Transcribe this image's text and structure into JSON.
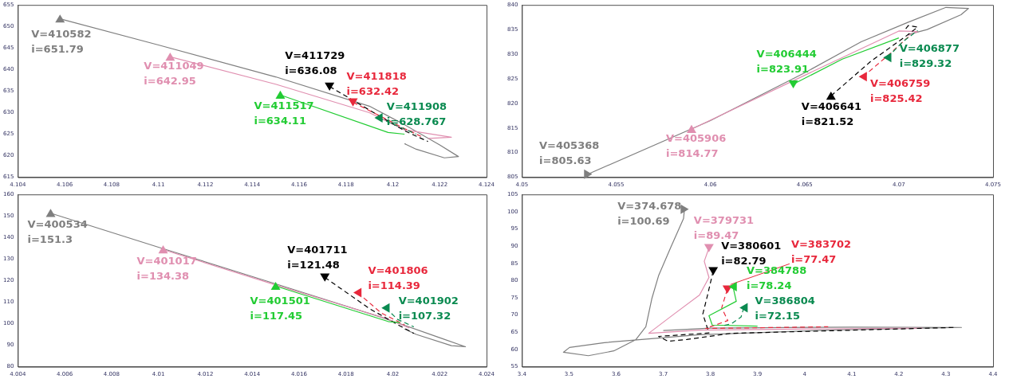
{
  "chart_data": [
    {
      "type": "line",
      "xlim": [
        4.104,
        4.124
      ],
      "xticks": [
        4.104,
        4.106,
        4.108,
        4.11,
        4.112,
        4.114,
        4.116,
        4.118,
        4.12,
        4.122,
        4.124
      ],
      "ylim": [
        615,
        655
      ],
      "yticks": [
        615,
        620,
        625,
        630,
        635,
        640,
        645,
        650,
        655
      ],
      "series": [
        {
          "color": "#7f7f7f",
          "line_style": "solid",
          "x": [
            4.1058,
            4.11,
            4.115,
            4.119,
            4.1205,
            4.122,
            4.1228,
            4.1222,
            4.121,
            4.1205
          ],
          "values": [
            651.79,
            645.7,
            638.3,
            631.5,
            627.2,
            622.5,
            619.8,
            619.5,
            621.5,
            622.8
          ]
        },
        {
          "color": "#e08fb0",
          "line_style": "solid",
          "x": [
            4.1105,
            4.115,
            4.119,
            4.1205,
            4.1225,
            4.1215
          ],
          "values": [
            642.95,
            636.6,
            630,
            626,
            624.3,
            624
          ]
        },
        {
          "color": "#000000",
          "line_style": "dashed",
          "x": [
            4.1173,
            4.119,
            4.1205,
            4.1215
          ],
          "values": [
            636.08,
            630.6,
            625.8,
            623.3
          ]
        },
        {
          "color": "#e8283c",
          "line_style": "dashed",
          "x": [
            4.1183,
            4.1205,
            4.1212
          ],
          "values": [
            632.42,
            626.3,
            624.5
          ]
        },
        {
          "color": "#22cc33",
          "line_style": "solid",
          "x": [
            4.1152,
            4.1198,
            4.1205
          ],
          "values": [
            634.11,
            625.4,
            625
          ]
        },
        {
          "color": "#0a8a50",
          "line_style": "dashed",
          "x": [
            4.1194,
            4.1205,
            4.121
          ],
          "values": [
            628.767,
            626.2,
            625
          ]
        }
      ],
      "annotations": [
        {
          "text": "V=410582\ni=651.79",
          "x": 4.1058,
          "y": 651.79
        },
        {
          "text": "V=411049\ni=642.95",
          "x": 4.1105,
          "y": 642.95
        },
        {
          "text": "V=411729\ni=636.08",
          "x": 4.1173,
          "y": 636.08
        },
        {
          "text": "V=411818\ni=632.42",
          "x": 4.1183,
          "y": 632.42
        },
        {
          "text": "V=411517\ni=634.11",
          "x": 4.1152,
          "y": 634.11
        },
        {
          "text": "V=411908\ni=628.767",
          "x": 4.1194,
          "y": 628.767
        }
      ]
    },
    {
      "type": "line",
      "xlim": [
        4.05,
        4.075
      ],
      "xticks": [
        4.05,
        4.055,
        4.06,
        4.065,
        4.07,
        4.075
      ],
      "ylim": [
        805,
        840
      ],
      "yticks": [
        805,
        810,
        815,
        820,
        825,
        830,
        835,
        840
      ],
      "series": [
        {
          "color": "#7f7f7f",
          "line_style": "solid",
          "x": [
            4.0535,
            4.06,
            4.065,
            4.068,
            4.0705,
            4.0725,
            4.0737,
            4.0733,
            4.0715,
            4.0705
          ],
          "values": [
            805.63,
            816.5,
            826.2,
            832.5,
            836.5,
            839.5,
            839.3,
            838,
            835,
            834
          ]
        },
        {
          "color": "#e08fb0",
          "line_style": "solid",
          "x": [
            4.059,
            4.065,
            4.07,
            4.071,
            4.0705
          ],
          "values": [
            814.77,
            825.7,
            834.7,
            834.6,
            833.8
          ]
        },
        {
          "color": "#000000",
          "line_style": "dashed",
          "x": [
            4.0664,
            4.0685,
            4.0705,
            4.071,
            4.0705,
            4.0703
          ],
          "values": [
            821.52,
            828.5,
            834,
            835.5,
            835.8,
            834.8
          ]
        },
        {
          "color": "#e8283c",
          "line_style": "dashed",
          "x": [
            4.0681,
            4.0695,
            4.0705
          ],
          "values": [
            825.42,
            830,
            833.5
          ]
        },
        {
          "color": "#22cc33",
          "line_style": "solid",
          "x": [
            4.0644,
            4.067,
            4.07
          ],
          "values": [
            823.91,
            829,
            833.3
          ]
        },
        {
          "color": "#0a8a50",
          "line_style": "dashed",
          "x": [
            4.0694,
            4.0702,
            4.071
          ],
          "values": [
            829.32,
            832.5,
            834.8
          ]
        }
      ],
      "annotations": [
        {
          "text": "V=405368\ni=805.63",
          "x": 4.0535,
          "y": 805.63
        },
        {
          "text": "V=405906\ni=814.77",
          "x": 4.059,
          "y": 814.77
        },
        {
          "text": "V=406641\ni=821.52",
          "x": 4.0664,
          "y": 821.52
        },
        {
          "text": "V=406759\ni=825.42",
          "x": 4.0681,
          "y": 825.42
        },
        {
          "text": "V=406444\ni=823.91",
          "x": 4.0644,
          "y": 823.91
        },
        {
          "text": "V=406877\ni=829.32",
          "x": 4.0694,
          "y": 829.32
        }
      ]
    },
    {
      "type": "line",
      "xlim": [
        4.004,
        4.024
      ],
      "xticks": [
        4.004,
        4.006,
        4.008,
        4.01,
        4.012,
        4.014,
        4.016,
        4.018,
        4.02,
        4.022,
        4.024
      ],
      "ylim": [
        80,
        160
      ],
      "yticks": [
        80,
        90,
        100,
        110,
        120,
        130,
        140,
        150,
        160
      ],
      "series": [
        {
          "color": "#7f7f7f",
          "line_style": "solid",
          "x": [
            4.0054,
            4.01,
            4.015,
            4.0195,
            4.022,
            4.0231,
            4.0225,
            4.021,
            4.0205
          ],
          "values": [
            151.3,
            135.5,
            118.5,
            103,
            93.5,
            89.3,
            89.8,
            95,
            97.5
          ]
        },
        {
          "color": "#e08fb0",
          "line_style": "solid",
          "x": [
            4.0102,
            4.015,
            4.0197,
            4.0207
          ],
          "values": [
            134.38,
            118,
            102.5,
            98
          ]
        },
        {
          "color": "#000000",
          "line_style": "dashed",
          "x": [
            4.0171,
            4.019,
            4.0203,
            4.0209
          ],
          "values": [
            121.48,
            107,
            99,
            95.5
          ]
        },
        {
          "color": "#e8283c",
          "line_style": "dashed",
          "x": [
            4.0185,
            4.0195,
            4.0205
          ],
          "values": [
            114.39,
            105,
            99.5
          ]
        },
        {
          "color": "#22cc33",
          "line_style": "solid",
          "x": [
            4.015,
            4.0198,
            4.0203
          ],
          "values": [
            117.45,
            101,
            100.5
          ]
        },
        {
          "color": "#0a8a50",
          "line_style": "dashed",
          "x": [
            4.0197,
            4.0202,
            4.0209
          ],
          "values": [
            107.32,
            102,
            98.5
          ]
        }
      ],
      "annotations": [
        {
          "text": "V=400534\ni=151.3",
          "x": 4.0054,
          "y": 151.3
        },
        {
          "text": "V=401017\ni=134.38",
          "x": 4.0102,
          "y": 134.38
        },
        {
          "text": "V=401711\ni=121.48",
          "x": 4.0171,
          "y": 121.48
        },
        {
          "text": "V=401806\ni=114.39",
          "x": 4.0185,
          "y": 114.39
        },
        {
          "text": "V=401501\ni=117.45",
          "x": 4.015,
          "y": 117.45
        },
        {
          "text": "V=401902\ni=107.32",
          "x": 4.0197,
          "y": 107.32
        }
      ]
    },
    {
      "type": "line",
      "xlim": [
        3.4,
        4.4
      ],
      "xticks": [
        3.4,
        3.5,
        3.6,
        3.7,
        3.8,
        3.9,
        4,
        4.1,
        4.2,
        4.3,
        4.4
      ],
      "ylim": [
        55,
        105
      ],
      "yticks": [
        55,
        60,
        65,
        70,
        75,
        80,
        85,
        90,
        95,
        100,
        105
      ],
      "series": [
        {
          "color": "#7f7f7f",
          "line_style": "solid",
          "x": [
            3.745,
            3.743,
            3.716,
            3.69,
            3.676,
            3.663,
            3.642,
            3.595,
            3.541,
            3.488,
            3.501,
            3.575,
            3.777,
            4.046,
            4.333,
            4.1,
            3.8,
            3.7
          ],
          "values": [
            100.69,
            98,
            89.7,
            81.4,
            74.9,
            66.6,
            62.9,
            59.6,
            58.2,
            59.2,
            60.6,
            62,
            64.3,
            65.6,
            66.4,
            66.5,
            66.2,
            65.5
          ]
        },
        {
          "color": "#e08fb0",
          "line_style": "solid",
          "x": [
            3.797,
            3.787,
            3.797,
            3.777,
            3.723,
            3.669,
            3.777,
            4.046,
            4.25
          ],
          "values": [
            89.47,
            85.6,
            80.9,
            75.8,
            70.3,
            64.7,
            65.6,
            66,
            66.2
          ]
        },
        {
          "color": "#000000",
          "line_style": "dashed",
          "x": [
            3.806,
            3.794,
            3.784,
            3.797,
            3.69,
            3.71,
            3.75,
            3.844,
            4.046,
            4.316
          ],
          "values": [
            82.79,
            75.8,
            70.3,
            64.8,
            63.8,
            62.4,
            62.9,
            64.7,
            65.4,
            66.4
          ]
        },
        {
          "color": "#e8283c",
          "line_style": "dashed",
          "x": [
            3.836,
            3.824,
            3.837,
            3.79,
            4.05
          ],
          "values": [
            77.47,
            72.1,
            68.4,
            66.1,
            66.6
          ]
        },
        {
          "color": "#22cc33",
          "line_style": "solid",
          "x": [
            3.848,
            3.855,
            3.797,
            3.804,
            3.9
          ],
          "values": [
            78.24,
            74,
            69.8,
            67.1,
            66.8
          ]
        },
        {
          "color": "#0a8a50",
          "line_style": "dashed",
          "x": [
            3.871,
            3.865,
            3.845,
            3.83
          ],
          "values": [
            72.15,
            69.4,
            67.5,
            67
          ]
        }
      ],
      "annotations": [
        {
          "text": "V=374.678\ni=100.69",
          "x": 3.745,
          "y": 100.69
        },
        {
          "text": "V=379731\ni=89.47",
          "x": 3.797,
          "y": 89.47
        },
        {
          "text": "V=380601\ni=82.79",
          "x": 3.806,
          "y": 82.79
        },
        {
          "text": "V=383702\ni=77.47",
          "x": 3.836,
          "y": 77.47
        },
        {
          "text": "V=384788\ni=78.24",
          "x": 3.848,
          "y": 78.24
        },
        {
          "text": "V=386804\ni=72.15",
          "x": 3.871,
          "y": 72.15
        }
      ]
    }
  ]
}
